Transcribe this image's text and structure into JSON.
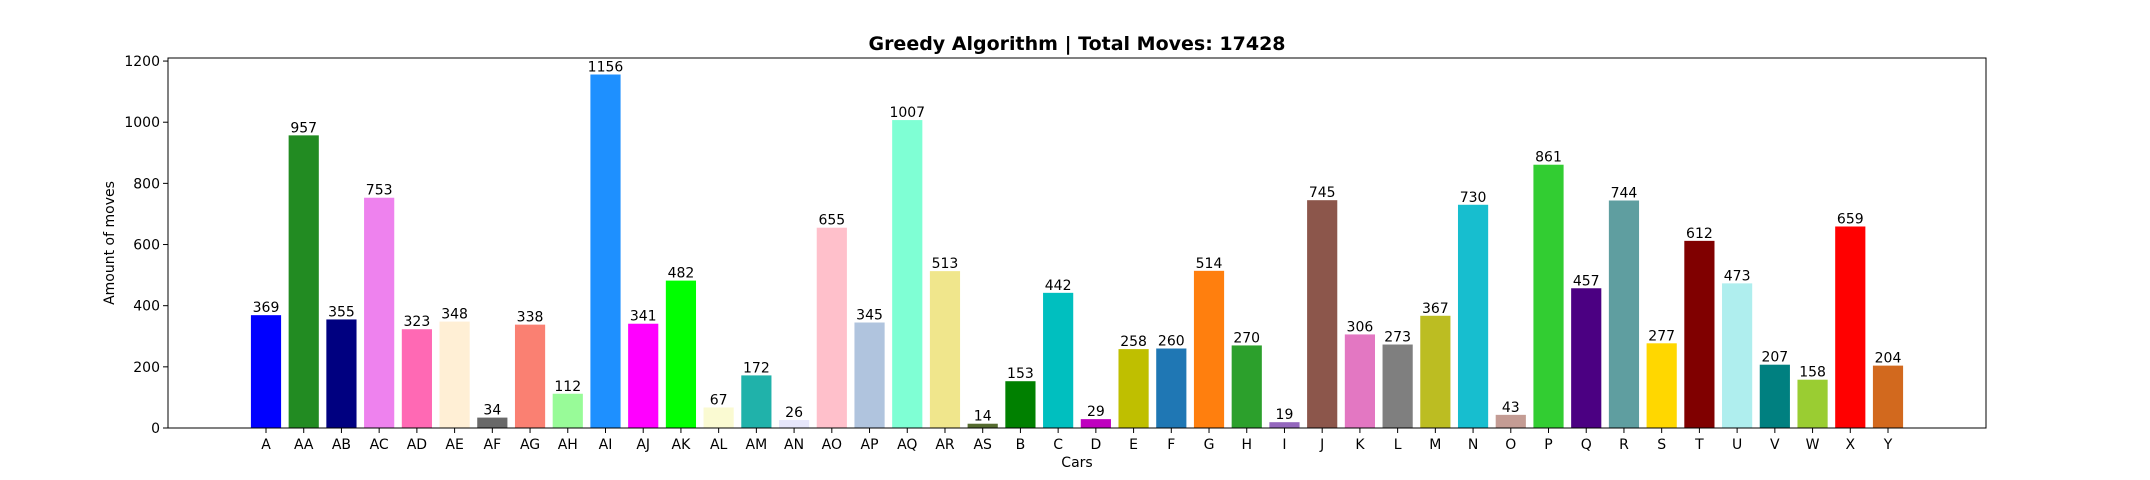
{
  "chart_data": {
    "type": "bar",
    "title": "Greedy Algorithm | Total Moves: 17428",
    "xlabel": "Cars",
    "ylabel": "Amount of moves",
    "ylim": [
      0,
      1210
    ],
    "yticks": [
      0,
      200,
      400,
      600,
      800,
      1000,
      1200
    ],
    "grid": false,
    "categories": [
      "A",
      "AA",
      "AB",
      "AC",
      "AD",
      "AE",
      "AF",
      "AG",
      "AH",
      "AI",
      "AJ",
      "AK",
      "AL",
      "AM",
      "AN",
      "AO",
      "AP",
      "AQ",
      "AR",
      "AS",
      "B",
      "C",
      "D",
      "E",
      "F",
      "G",
      "H",
      "I",
      "J",
      "K",
      "L",
      "M",
      "N",
      "O",
      "P",
      "Q",
      "R",
      "S",
      "T",
      "U",
      "V",
      "W",
      "X",
      "Y"
    ],
    "values": [
      369,
      957,
      355,
      753,
      323,
      348,
      34,
      338,
      112,
      1156,
      341,
      482,
      67,
      172,
      26,
      655,
      345,
      1007,
      513,
      14,
      153,
      442,
      29,
      258,
      260,
      514,
      270,
      19,
      745,
      306,
      273,
      367,
      730,
      43,
      861,
      457,
      744,
      277,
      612,
      473,
      207,
      158,
      659,
      204
    ],
    "colors": [
      "#0000ff",
      "#228b22",
      "#000080",
      "#ee82ee",
      "#ff69b4",
      "#ffefd5",
      "#696969",
      "#fa8072",
      "#98fb98",
      "#1e90ff",
      "#ff00ff",
      "#00ff00",
      "#fafad2",
      "#20b2aa",
      "#e6e6fa",
      "#ffc0cb",
      "#b0c4de",
      "#7fffd4",
      "#f0e68c",
      "#556b2f",
      "#008000",
      "#00bfbf",
      "#bf00bf",
      "#bfbf00",
      "#1f77b4",
      "#ff7f0e",
      "#2ca02c",
      "#9467bd",
      "#8c564b",
      "#e377c2",
      "#7f7f7f",
      "#bcbd22",
      "#17becf",
      "#c49c94",
      "#32cd32",
      "#4b0082",
      "#5f9ea0",
      "#ffd700",
      "#800000",
      "#afeeee",
      "#008080",
      "#9acd32",
      "#ff0000",
      "#d2691e"
    ]
  }
}
